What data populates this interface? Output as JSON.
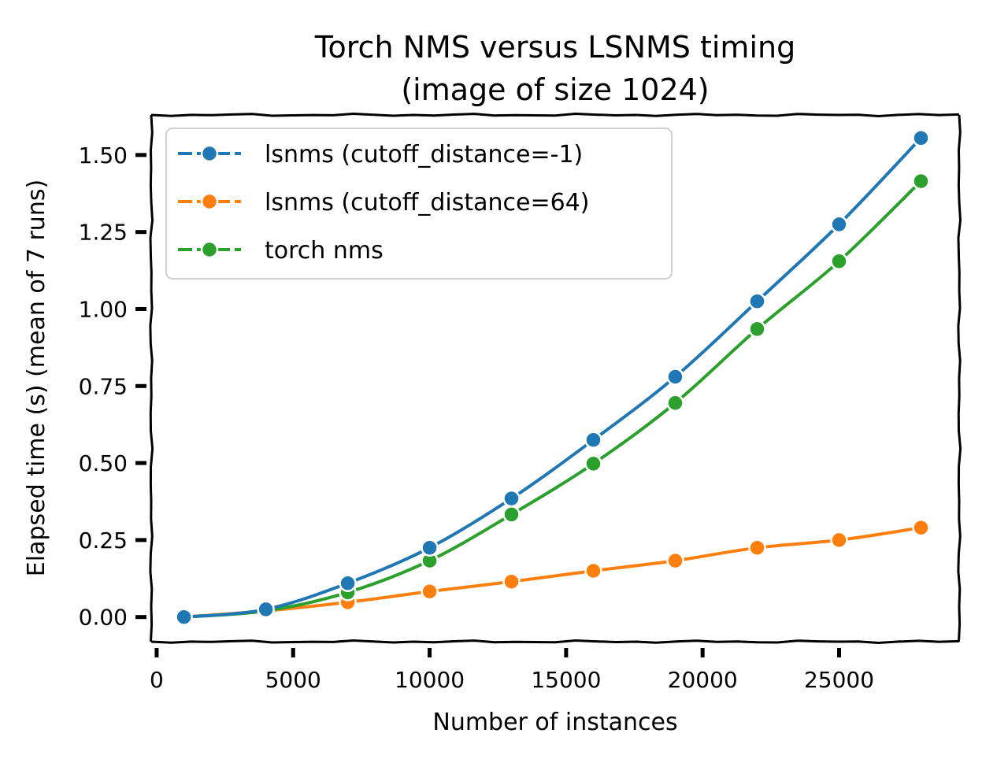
{
  "chart_data": {
    "type": "line",
    "title_lines": [
      "Torch NMS versus LSNMS timing",
      "(image of size 1024)"
    ],
    "xlabel": "Number of instances",
    "ylabel": "Elapsed time (s) (mean of 7 runs)",
    "xlim": [
      -200,
      29400
    ],
    "ylim": [
      -0.08,
      1.63
    ],
    "xticks": [
      0,
      5000,
      10000,
      15000,
      20000,
      25000
    ],
    "xtick_labels": [
      "0",
      "5000",
      "10000",
      "15000",
      "20000",
      "25000"
    ],
    "yticks": [
      0.0,
      0.25,
      0.5,
      0.75,
      1.0,
      1.25,
      1.5
    ],
    "ytick_labels": [
      "0.00",
      "0.25",
      "0.50",
      "0.75",
      "1.00",
      "1.25",
      "1.50"
    ],
    "grid": false,
    "legend_position": "top-left",
    "x": [
      1000,
      4000,
      7000,
      10000,
      13000,
      16000,
      19000,
      22000,
      25000,
      28000
    ],
    "series": [
      {
        "name": "lsnms (cutoff_distance=-1)",
        "color": "#1f77b4",
        "values": [
          0.0,
          0.025,
          0.11,
          0.225,
          0.385,
          0.575,
          0.78,
          1.025,
          1.275,
          1.555
        ]
      },
      {
        "name": "lsnms (cutoff_distance=64)",
        "color": "#ff7f0e",
        "values": [
          0.0,
          0.02,
          0.048,
          0.083,
          0.115,
          0.15,
          0.183,
          0.225,
          0.25,
          0.29
        ]
      },
      {
        "name": "torch nms",
        "color": "#2ca02c",
        "values": [
          0.0,
          0.02,
          0.08,
          0.183,
          0.333,
          0.498,
          0.695,
          0.935,
          1.155,
          1.415
        ]
      }
    ]
  }
}
